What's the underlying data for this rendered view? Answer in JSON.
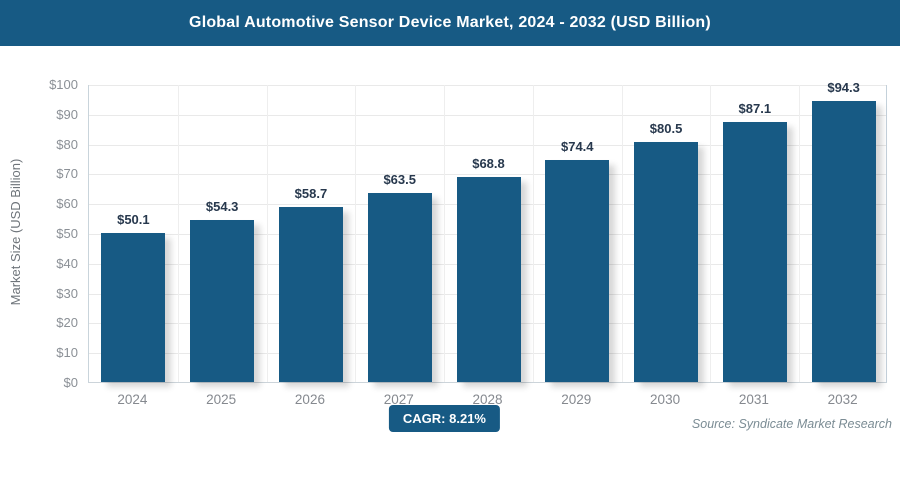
{
  "header": {
    "title": "Global Automotive Sensor Device Market, 2024 - 2032 (USD Billion)"
  },
  "chart_data": {
    "type": "bar",
    "title": "Global Automotive Sensor Device Market, 2024 - 2032 (USD Billion)",
    "categories": [
      "2024",
      "2025",
      "2026",
      "2027",
      "2028",
      "2029",
      "2030",
      "2031",
      "2032"
    ],
    "values": [
      50.1,
      54.3,
      58.7,
      63.5,
      68.8,
      74.4,
      80.5,
      87.1,
      94.3
    ],
    "data_labels": [
      "$50.1",
      "$54.3",
      "$58.7",
      "$63.5",
      "$68.8",
      "$74.4",
      "$80.5",
      "$87.1",
      "$94.3"
    ],
    "xlabel": "",
    "ylabel": "Market Size (USD Billion)",
    "ylim": [
      0,
      100
    ],
    "ytick_step": 10,
    "ytick_labels": [
      "$0",
      "$10",
      "$20",
      "$30",
      "$40",
      "$50",
      "$60",
      "$70",
      "$80",
      "$90",
      "$100"
    ],
    "grid": "horizontal and vertical light gridlines",
    "legend": "none",
    "bar_color": "#175a84",
    "value_label_color": "#27384d"
  },
  "footer": {
    "cagr_label": "CAGR: 8.21%",
    "source": "Source: Syndicate Market Research"
  },
  "colors": {
    "accent": "#175a84",
    "header_bg": "#175a84",
    "header_text": "#ffffff",
    "tick_text": "#8b9096",
    "axis_title_text": "#6e747a",
    "source_text": "#7b8c94",
    "gridline": "#e9e9e9",
    "background": "#ffffff"
  }
}
